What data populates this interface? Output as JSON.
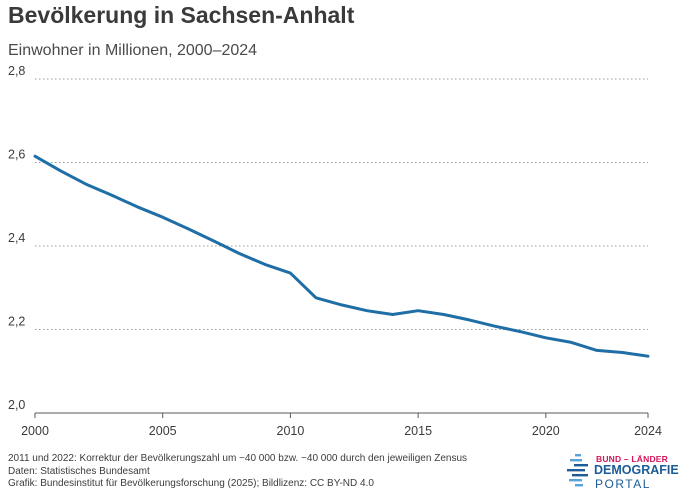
{
  "header": {
    "title": "Bevölkerung in Sachsen-Anhalt",
    "subtitle": "Einwohner in Millionen, 2000–2024"
  },
  "chart_data": {
    "type": "line",
    "title": "Bevölkerung in Sachsen-Anhalt",
    "subtitle": "Einwohner in Millionen, 2000–2024",
    "xlabel": "",
    "ylabel": "",
    "x": [
      2000,
      2001,
      2002,
      2003,
      2004,
      2005,
      2006,
      2007,
      2008,
      2009,
      2010,
      2011,
      2012,
      2013,
      2014,
      2015,
      2016,
      2017,
      2018,
      2019,
      2020,
      2021,
      2022,
      2023,
      2024
    ],
    "series": [
      {
        "values": [
          2.615,
          2.58,
          2.548,
          2.522,
          2.494,
          2.469,
          2.441,
          2.412,
          2.382,
          2.356,
          2.335,
          2.276,
          2.259,
          2.245,
          2.236,
          2.245,
          2.236,
          2.223,
          2.208,
          2.195,
          2.18,
          2.169,
          2.15,
          2.145,
          2.136
        ],
        "color": "#1f6ea6"
      }
    ],
    "ylim": [
      2.0,
      2.8
    ],
    "xlim": [
      2000,
      2024
    ],
    "y_ticks": [
      "2,0",
      "2,2",
      "2,4",
      "2,6",
      "2,8"
    ],
    "x_ticks": [
      "2000",
      "2005",
      "2010",
      "2015",
      "2020",
      "2024"
    ],
    "grid": "horizontal dotted",
    "legend": "none"
  },
  "footer": {
    "note": "2011 und 2022: Korrektur der Bevölkerungszahl um −40 000 bzw. −40 000 durch den jeweiligen Zensus",
    "source": "Daten: Statistisches Bundesamt",
    "credit": "Grafik: Bundesinstitut für Bevölkerungsforschung (2025); Bildlizenz: CC BY-ND 4.0"
  },
  "logo": {
    "top": "BUND – LÄNDER",
    "mid": "DEMOGRAFIE",
    "bottom": "PORTAL"
  }
}
